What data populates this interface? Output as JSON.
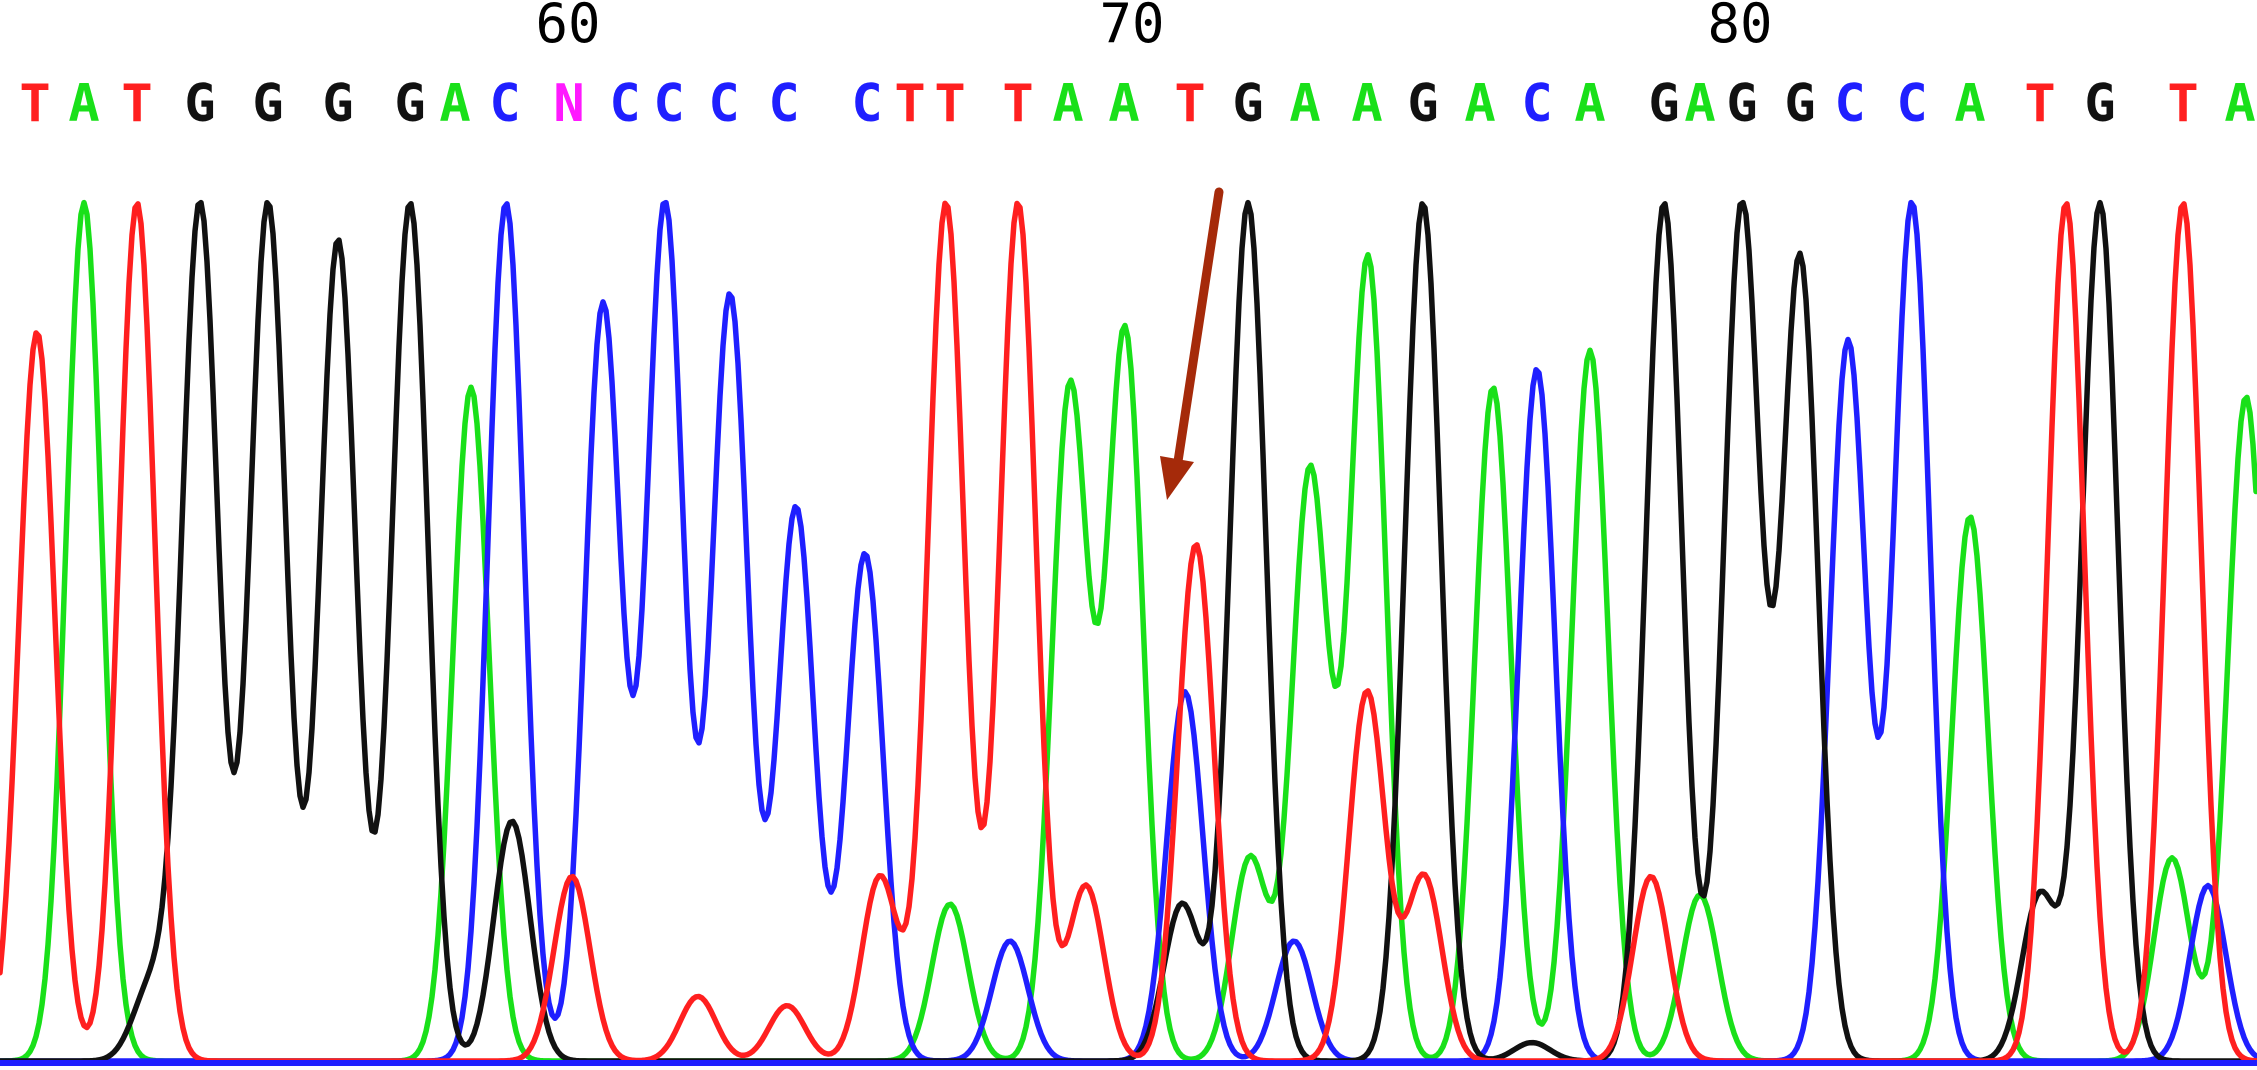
{
  "chart_data": {
    "type": "line",
    "title": "",
    "xlabel": "",
    "ylabel": "",
    "position_ticks": [
      {
        "label": "60",
        "base": 60
      },
      {
        "label": "70",
        "base": 70
      },
      {
        "label": "80",
        "base": 80
      }
    ],
    "base_calls": [
      "T",
      "A",
      "T",
      "G",
      "G",
      "G",
      "G",
      "A",
      "C",
      "N",
      "C",
      "C",
      "C",
      "C",
      "C",
      "T",
      "T",
      "T",
      "A",
      "A",
      "T",
      "G",
      "A",
      "A",
      "G",
      "A",
      "C",
      "A",
      "G",
      "A",
      "G",
      "G",
      "C",
      "C",
      "A",
      "T",
      "G",
      "T",
      "A"
    ],
    "base_colors": {
      "A": "#19e019",
      "C": "#1f1fff",
      "G": "#111111",
      "T": "#ff1f1f",
      "N": "#ff19ff"
    },
    "series": [
      {
        "name": "A",
        "color": "#19e019",
        "peaks": [
          [
            84,
            0.93
          ],
          [
            471,
            0.73
          ],
          [
            950,
            0.17
          ],
          [
            1070,
            0.73
          ],
          [
            1125,
            0.79
          ],
          [
            1250,
            0.22
          ],
          [
            1310,
            0.64
          ],
          [
            1368,
            0.87
          ],
          [
            1493,
            0.73
          ],
          [
            1590,
            0.77
          ],
          [
            1700,
            0.18
          ],
          [
            1970,
            0.59
          ],
          [
            2172,
            0.22
          ],
          [
            2246,
            0.72
          ]
        ]
      },
      {
        "name": "C",
        "color": "#1f1fff",
        "peaks": [
          [
            506,
            0.93
          ],
          [
            603,
            0.82
          ],
          [
            665,
            0.93
          ],
          [
            730,
            0.83
          ],
          [
            796,
            0.6
          ],
          [
            865,
            0.55
          ],
          [
            1010,
            0.13
          ],
          [
            1185,
            0.4
          ],
          [
            1294,
            0.13
          ],
          [
            1537,
            0.75
          ],
          [
            1848,
            0.78
          ],
          [
            1912,
            0.93
          ],
          [
            2208,
            0.19
          ]
        ]
      },
      {
        "name": "G",
        "color": "#111111",
        "peaks": [
          [
            151,
            0.08
          ],
          [
            200,
            0.93
          ],
          [
            268,
            0.93
          ],
          [
            338,
            0.89
          ],
          [
            410,
            0.93
          ],
          [
            512,
            0.26
          ],
          [
            1182,
            0.17
          ],
          [
            1248,
            0.93
          ],
          [
            1423,
            0.93
          ],
          [
            1532,
            0.02
          ],
          [
            1664,
            0.93
          ],
          [
            1742,
            0.93
          ],
          [
            1800,
            0.87
          ],
          [
            2040,
            0.18
          ],
          [
            2100,
            0.93
          ]
        ]
      },
      {
        "name": "T",
        "color": "#ff1f1f",
        "peaks": [
          [
            37,
            0.79
          ],
          [
            137,
            0.93
          ],
          [
            572,
            0.2
          ],
          [
            698,
            0.07
          ],
          [
            787,
            0.06
          ],
          [
            880,
            0.2
          ],
          [
            946,
            0.93
          ],
          [
            1018,
            0.93
          ],
          [
            1086,
            0.19
          ],
          [
            1196,
            0.56
          ],
          [
            1367,
            0.4
          ],
          [
            1424,
            0.2
          ],
          [
            1651,
            0.2
          ],
          [
            2066,
            0.93
          ],
          [
            2183,
            0.93
          ]
        ]
      }
    ],
    "ylim": [
      0,
      1
    ],
    "grid": false,
    "legend": "none",
    "annotations": [
      {
        "type": "arrow",
        "color": "#a52a0a",
        "points_to_base": "T",
        "base_index": 71
      }
    ]
  }
}
